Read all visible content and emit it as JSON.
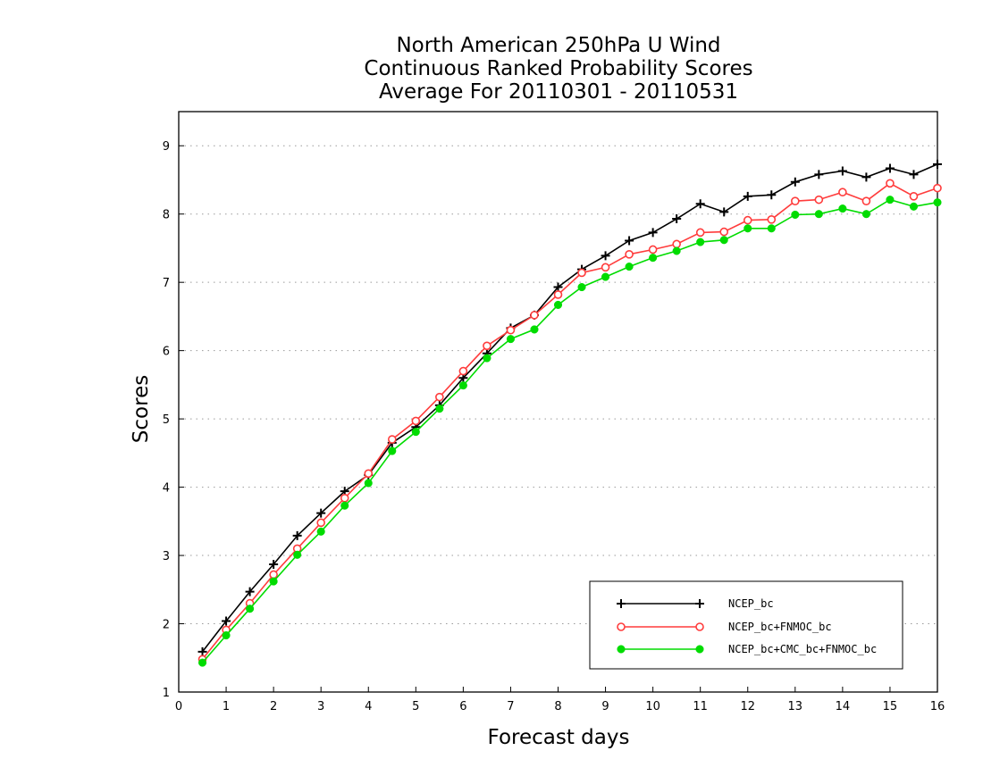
{
  "chart_data": {
    "type": "line",
    "title": [
      "North American 250hPa U Wind",
      "Continuous Ranked Probability Scores",
      "Average For 20110301 - 20110531"
    ],
    "xlabel": "Forecast days",
    "ylabel": "Scores",
    "xlim": [
      0,
      16
    ],
    "ylim": [
      1,
      9.5
    ],
    "xticks": [
      0,
      1,
      2,
      3,
      4,
      5,
      6,
      7,
      8,
      9,
      10,
      11,
      12,
      13,
      14,
      15,
      16
    ],
    "yticks": [
      1,
      2,
      3,
      4,
      5,
      6,
      7,
      8,
      9
    ],
    "grid": "horizontal dotted",
    "legend_position": "lower-right",
    "x": [
      0.5,
      1,
      1.5,
      2,
      2.5,
      3,
      3.5,
      4,
      4.5,
      5,
      5.5,
      6,
      6.5,
      7,
      7.5,
      8,
      8.5,
      9,
      9.5,
      10,
      10.5,
      11,
      11.5,
      12,
      12.5,
      13,
      13.5,
      14,
      14.5,
      15,
      15.5,
      16
    ],
    "series": [
      {
        "name": "NCEP_bc",
        "color": "#000000",
        "marker": "plus",
        "values": [
          1.59,
          2.04,
          2.47,
          2.87,
          3.29,
          3.62,
          3.94,
          4.18,
          4.65,
          4.88,
          5.2,
          5.6,
          5.96,
          6.33,
          6.52,
          6.93,
          7.19,
          7.39,
          7.61,
          7.73,
          7.93,
          8.15,
          8.03,
          8.26,
          8.28,
          8.47,
          8.58,
          8.63,
          8.54,
          8.67,
          8.58,
          8.73
        ]
      },
      {
        "name": "NCEP_bc+FNMOC_bc",
        "color": "#ff3c3c",
        "marker": "open-circle",
        "values": [
          1.48,
          1.91,
          2.3,
          2.72,
          3.1,
          3.48,
          3.84,
          4.2,
          4.7,
          4.97,
          5.32,
          5.7,
          6.07,
          6.3,
          6.52,
          6.82,
          7.14,
          7.22,
          7.41,
          7.48,
          7.56,
          7.73,
          7.74,
          7.91,
          7.92,
          8.19,
          8.21,
          8.32,
          8.19,
          8.45,
          8.26,
          8.38
        ]
      },
      {
        "name": "NCEP_bc+CMC_bc+FNMOC_bc",
        "color": "#00dc00",
        "marker": "filled-circle",
        "values": [
          1.43,
          1.83,
          2.22,
          2.62,
          3.01,
          3.35,
          3.73,
          4.06,
          4.53,
          4.81,
          5.15,
          5.49,
          5.89,
          6.17,
          6.31,
          6.67,
          6.93,
          7.08,
          7.23,
          7.36,
          7.46,
          7.59,
          7.62,
          7.79,
          7.79,
          7.99,
          8.0,
          8.08,
          8.0,
          8.21,
          8.11,
          8.17
        ]
      }
    ]
  }
}
